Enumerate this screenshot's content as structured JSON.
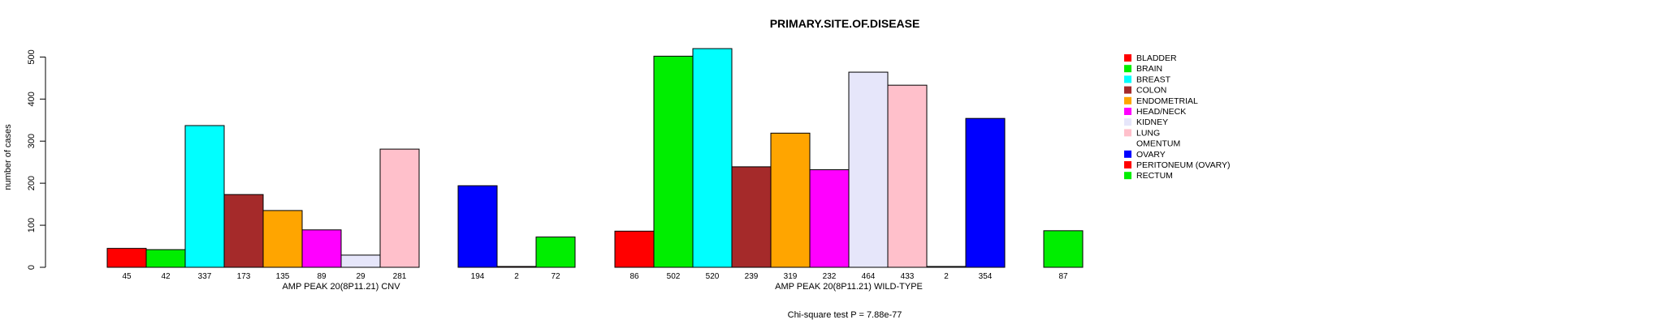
{
  "chart_data": {
    "type": "bar",
    "title": "PRIMARY.SITE.OF.DISEASE",
    "ylabel": "number of cases",
    "ylim": [
      0,
      520
    ],
    "yticks": [
      0,
      100,
      200,
      300,
      400,
      500
    ],
    "footer": "Chi-square test P = 7.88e-77",
    "categories": [
      "BLADDER",
      "BRAIN",
      "BREAST",
      "COLON",
      "ENDOMETRIAL",
      "HEAD/NECK",
      "KIDNEY",
      "LUNG",
      "OMENTUM",
      "OVARY",
      "PERITONEUM (OVARY)",
      "RECTUM"
    ],
    "colors": [
      "#ff0000",
      "#00ee00",
      "#00ffff",
      "#a52a2a",
      "#ffa500",
      "#ff00ff",
      "#e6e6fa",
      "#ffc0cb",
      "#ffffff",
      "#0000ff",
      "#ff0000",
      "#00ee00"
    ],
    "groups": [
      {
        "name": "AMP PEAK 20(8P11.21) CNV",
        "values": [
          45,
          42,
          337,
          173,
          135,
          89,
          29,
          281,
          0,
          194,
          2,
          72
        ],
        "labels": [
          "45",
          "42",
          "337",
          "173",
          "135",
          "89",
          "29",
          "281",
          "",
          "194",
          "2",
          "72"
        ]
      },
      {
        "name": "AMP PEAK 20(8P11.21) WILD-TYPE",
        "values": [
          86,
          502,
          520,
          239,
          319,
          232,
          464,
          433,
          2,
          354,
          0,
          87
        ],
        "labels": [
          "86",
          "502",
          "520",
          "239",
          "319",
          "232",
          "464",
          "433",
          "2",
          "354",
          "",
          "87"
        ]
      }
    ],
    "legend": {
      "position": "right",
      "entries": [
        "BLADDER",
        "BRAIN",
        "BREAST",
        "COLON",
        "ENDOMETRIAL",
        "HEAD/NECK",
        "KIDNEY",
        "LUNG",
        "OMENTUM",
        "OVARY",
        "PERITONEUM (OVARY)",
        "RECTUM"
      ]
    }
  }
}
